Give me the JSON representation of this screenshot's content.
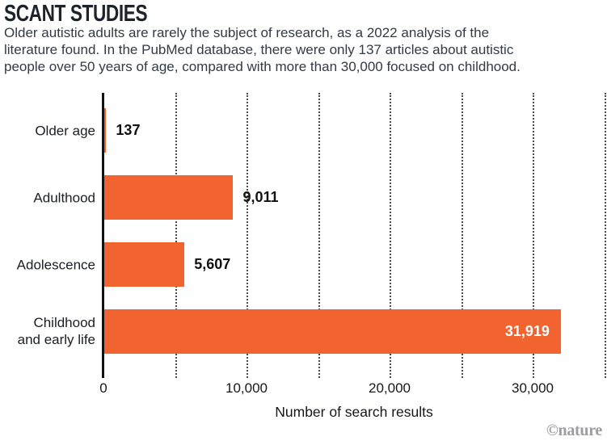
{
  "header": {
    "title": "SCANT STUDIES",
    "description": "Older autistic adults are rarely the subject of research, as a 2022 analysis of the\nliterature found. In the PubMed database, there were only 137 articles about autistic\npeople over 50 years of age, compared with more than 30,000 focused on childhood."
  },
  "chart_data": {
    "type": "bar",
    "orientation": "horizontal",
    "categories": [
      "Older age",
      "Adulthood",
      "Adolescence",
      "Childhood\nand early life"
    ],
    "values": [
      137,
      9011,
      5607,
      31919
    ],
    "value_labels": [
      "137",
      "9,011",
      "5,607",
      "31,919"
    ],
    "xlabel": "Number of search results",
    "x_ticks": [
      0,
      10000,
      20000,
      30000
    ],
    "x_tick_labels": [
      "0",
      "10,000",
      "20,000",
      "30,000"
    ],
    "xlim": [
      0,
      35200
    ],
    "gridline_interval": 5000,
    "grid_style": "dotted-vertical",
    "legend": "none",
    "bar_color": "#F2642F",
    "value_label_inside_color": "#FFFFFF",
    "value_label_outside_color": "#111111"
  },
  "footer": {
    "credit": "©nature"
  },
  "colors": {
    "background": "#FFFFFF",
    "title": "#1E222A",
    "body_text": "#333A45",
    "axis_line": "#111111",
    "gridline": "#4A4A4A",
    "bar": "#F2642F",
    "credit": "#9D9DA1"
  }
}
